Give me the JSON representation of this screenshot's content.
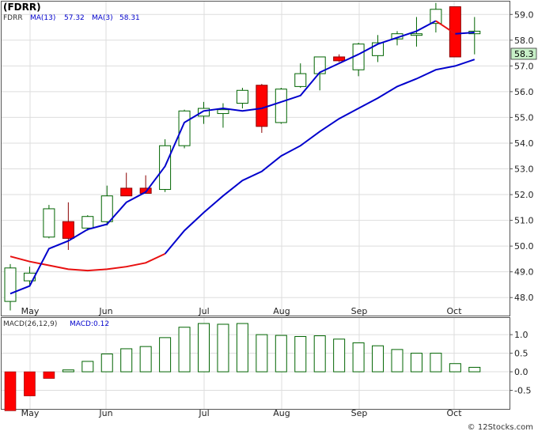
{
  "title": "(FDRR)",
  "legend": {
    "symbol": "FDRR",
    "ma13_label": "MA(13)",
    "ma13_value": "57.32",
    "ma3_label": "MA(3)",
    "ma3_value": "58.31"
  },
  "last_price_badge": "58.3",
  "macd_legend": {
    "label": "MACD(26,12,9)",
    "value_label": "MACD:0.12"
  },
  "watermark": "© 12Stocks.com",
  "colors": {
    "up_candle_border": "#006400",
    "down_candle": "#ff0000",
    "ma13": "#0000cc",
    "ma3_red": "#e81010",
    "grid": "#dddddd",
    "badge_bg": "#c8f0c8"
  },
  "chart_data": [
    {
      "type": "candlestick",
      "title": "(FDRR)",
      "x_labels": [
        "May",
        "Jun",
        "Jul",
        "Aug",
        "Sep",
        "Oct"
      ],
      "y_ticks": [
        "48.0",
        "49.0",
        "50.0",
        "51.0",
        "52.0",
        "53.0",
        "54.0",
        "55.0",
        "56.0",
        "57.0",
        "58.0",
        "59.0"
      ],
      "ylim": [
        47.3,
        59.5
      ],
      "candles": [
        {
          "o": 47.85,
          "h": 49.3,
          "l": 47.5,
          "c": 49.15
        },
        {
          "o": 48.65,
          "h": 49.2,
          "l": 48.45,
          "c": 48.95
        },
        {
          "o": 50.35,
          "h": 51.6,
          "l": 50.3,
          "c": 51.45
        },
        {
          "o": 50.95,
          "h": 51.7,
          "l": 49.85,
          "c": 50.3
        },
        {
          "o": 50.7,
          "h": 51.2,
          "l": 50.6,
          "c": 51.15
        },
        {
          "o": 50.95,
          "h": 52.35,
          "l": 50.8,
          "c": 51.95
        },
        {
          "o": 52.25,
          "h": 52.85,
          "l": 51.95,
          "c": 51.95
        },
        {
          "o": 52.25,
          "h": 52.75,
          "l": 52.05,
          "c": 52.05
        },
        {
          "o": 52.2,
          "h": 54.15,
          "l": 52.1,
          "c": 53.9
        },
        {
          "o": 53.9,
          "h": 55.3,
          "l": 53.8,
          "c": 55.25
        },
        {
          "o": 55.05,
          "h": 55.6,
          "l": 54.75,
          "c": 55.35
        },
        {
          "o": 55.15,
          "h": 55.55,
          "l": 54.6,
          "c": 55.3
        },
        {
          "o": 55.55,
          "h": 56.15,
          "l": 55.35,
          "c": 56.05
        },
        {
          "o": 56.25,
          "h": 56.3,
          "l": 54.4,
          "c": 54.65
        },
        {
          "o": 54.8,
          "h": 56.15,
          "l": 54.75,
          "c": 56.1
        },
        {
          "o": 56.2,
          "h": 57.1,
          "l": 56.15,
          "c": 56.7
        },
        {
          "o": 56.7,
          "h": 57.35,
          "l": 56.05,
          "c": 57.35
        },
        {
          "o": 57.35,
          "h": 57.45,
          "l": 57.15,
          "c": 57.2
        },
        {
          "o": 56.85,
          "h": 57.9,
          "l": 56.6,
          "c": 57.85
        },
        {
          "o": 57.4,
          "h": 58.2,
          "l": 57.15,
          "c": 57.9
        },
        {
          "o": 58.05,
          "h": 58.35,
          "l": 57.8,
          "c": 58.25
        },
        {
          "o": 58.2,
          "h": 58.9,
          "l": 57.75,
          "c": 58.25
        },
        {
          "o": 58.65,
          "h": 59.45,
          "l": 58.3,
          "c": 59.2
        },
        {
          "o": 59.3,
          "h": 59.3,
          "l": 57.35,
          "c": 57.35
        },
        {
          "o": 58.25,
          "h": 58.9,
          "l": 57.45,
          "c": 58.35
        }
      ],
      "series": [
        {
          "name": "MA(13)",
          "values": [
            47.9,
            48.9,
            49.9,
            50.2,
            50.6,
            50.8,
            51.05,
            51.2,
            51.7,
            52.0,
            52.5,
            52.9,
            53.5,
            53.9,
            54.45,
            54.95,
            55.35,
            55.75,
            56.2,
            56.5,
            56.75,
            56.9,
            57.05,
            57.3
          ]
        },
        {
          "name": "MA(3)",
          "values": [
            49.6,
            49.4,
            49.25,
            49.1,
            49.05,
            49.1,
            49.2,
            49.35,
            49.7,
            50.6,
            51.3,
            51.95,
            52.55,
            52.9,
            53.5,
            53.9,
            54.45,
            54.95,
            55.35,
            55.75,
            56.2,
            56.5,
            56.85,
            57.0,
            57.25
          ]
        },
        {
          "name": "MA(3) short",
          "values": [
            48.15,
            48.45,
            49.9,
            50.2,
            50.65,
            50.85,
            51.7,
            52.1,
            53.1,
            54.8,
            55.25,
            55.35,
            55.25,
            55.35,
            55.6,
            55.85,
            56.75,
            57.1,
            57.45,
            57.85,
            58.1,
            58.35,
            58.75,
            58.25,
            58.3
          ]
        }
      ]
    },
    {
      "type": "bar",
      "title": "MACD(26,12,9)",
      "y_ticks": [
        "1.0",
        "0.5",
        "0.0",
        "-0.5"
      ],
      "ylim": [
        -1.0,
        1.45
      ],
      "values": [
        -1.05,
        -0.65,
        -0.18,
        0.05,
        0.28,
        0.48,
        0.62,
        0.68,
        0.92,
        1.2,
        1.3,
        1.28,
        1.3,
        1.0,
        0.98,
        0.95,
        0.97,
        0.88,
        0.78,
        0.7,
        0.6,
        0.5,
        0.5,
        0.22,
        0.12
      ]
    }
  ]
}
